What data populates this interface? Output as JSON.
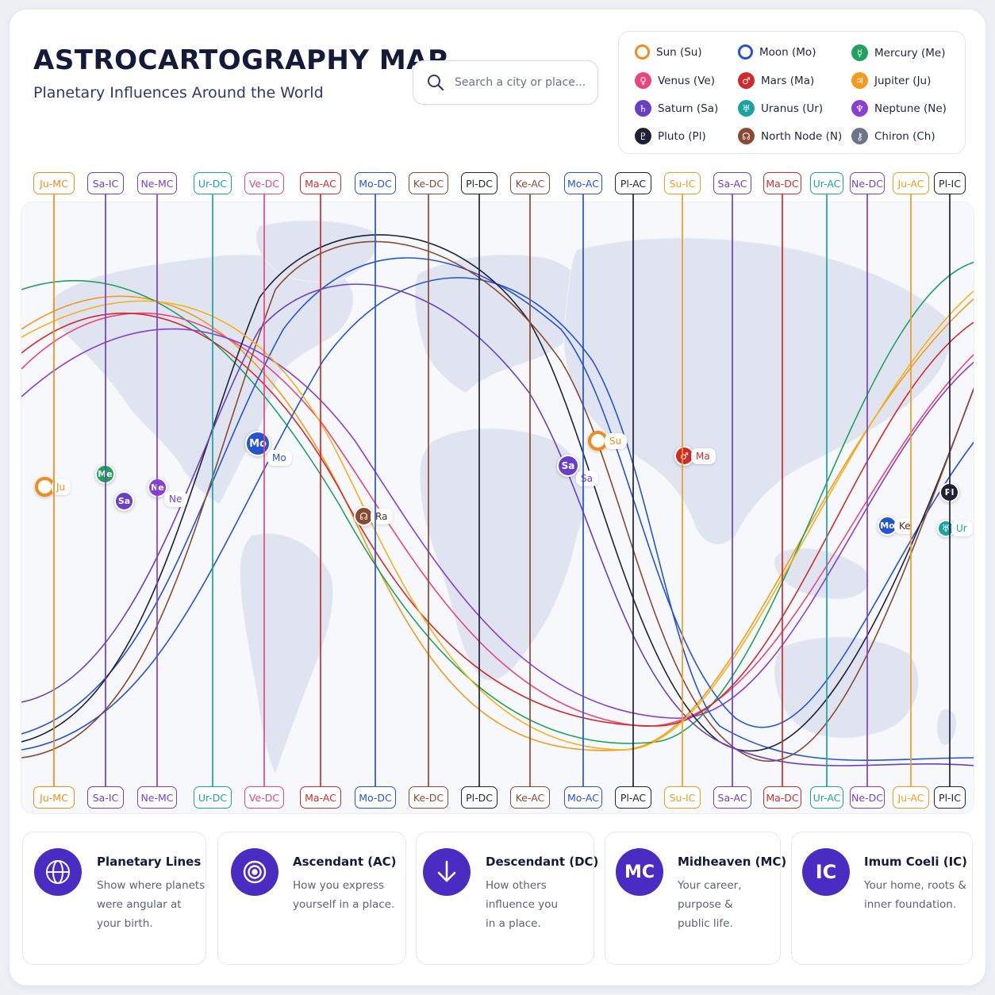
{
  "header": {
    "title": "ASTROCARTOGRAPHY MAP",
    "subtitle": "Planetary Influences Around the World"
  },
  "search": {
    "placeholder": "Search a city or place..."
  },
  "legend": [
    {
      "label": "Sun (Su)",
      "glyph": "",
      "color": "#f08c1a",
      "icon": "sun-icon"
    },
    {
      "label": "Moon (Mo)",
      "glyph": "",
      "color": "#2454d4",
      "icon": "moon-icon"
    },
    {
      "label": "Mercury (Me)",
      "glyph": "☿",
      "color": "#1fa35c",
      "icon": "mercury-icon"
    },
    {
      "label": "Venus (Ve)",
      "glyph": "♀",
      "color": "#e8457e",
      "icon": "venus-icon"
    },
    {
      "label": "Mars (Ma)",
      "glyph": "♂",
      "color": "#d12a2a",
      "icon": "mars-icon"
    },
    {
      "label": "Jupiter (Ju)",
      "glyph": "♃",
      "color": "#f29b1e",
      "icon": "jupiter-icon"
    },
    {
      "label": "Saturn (Sa)",
      "glyph": "♄",
      "color": "#6a3fc8",
      "icon": "saturn-icon"
    },
    {
      "label": "Uranus (Ur)",
      "glyph": "♅",
      "color": "#1aa3a3",
      "icon": "uranus-icon"
    },
    {
      "label": "Neptune (Ne)",
      "glyph": "♆",
      "color": "#8a3fd4",
      "icon": "neptune-icon"
    },
    {
      "label": "Pluto (Pl)",
      "glyph": "♇",
      "color": "#1f2235",
      "icon": "pluto-icon"
    },
    {
      "label": "North Node (N)",
      "glyph": "☊",
      "color": "#8a4a32",
      "icon": "north-node-icon"
    },
    {
      "label": "Chiron (Ch)",
      "glyph": "⚷",
      "color": "#6e7488",
      "icon": "chiron-icon"
    }
  ],
  "map_lines": [
    {
      "label": "Ju-MC",
      "color": "#f08c1a"
    },
    {
      "label": "Sa-IC",
      "color": "#6a3fc8"
    },
    {
      "label": "Ne-MC",
      "color": "#7a3fd0"
    },
    {
      "label": "Ur-DC",
      "color": "#1aa3a3"
    },
    {
      "label": "Ve-DC",
      "color": "#e8457e"
    },
    {
      "label": "Ma-AC",
      "color": "#d12a2a"
    },
    {
      "label": "Mo-DC",
      "color": "#2454d4"
    },
    {
      "label": "Ke-DC",
      "color": "#8a4a32"
    },
    {
      "label": "Pl-DC",
      "color": "#1f2235"
    },
    {
      "label": "Ke-AC",
      "color": "#8a4a32"
    },
    {
      "label": "Mo-AC",
      "color": "#2454d4"
    },
    {
      "label": "Pl-AC",
      "color": "#1f2235"
    },
    {
      "label": "Su-IC",
      "color": "#f29b1e"
    },
    {
      "label": "Sa-AC",
      "color": "#6a3fc8"
    },
    {
      "label": "Ma-DC",
      "color": "#d12a2a"
    },
    {
      "label": "Ur-AC",
      "color": "#1aa3a3"
    },
    {
      "label": "Ne-DC",
      "color": "#7a3fd0"
    },
    {
      "label": "Ju-AC",
      "color": "#f29b1e"
    },
    {
      "label": "Pl-IC",
      "color": "#1f2235"
    }
  ],
  "markers": [
    {
      "symbol": "",
      "label": "Ju",
      "color": "#f08c1a",
      "name": "marker-jupiter"
    },
    {
      "symbol": "Me",
      "label": "",
      "color": "#1fa35c",
      "name": "marker-mercury"
    },
    {
      "symbol": "Sa",
      "label": "",
      "color": "#6a3fc8",
      "name": "marker-saturn-west"
    },
    {
      "symbol": "Ne",
      "label": "Ne",
      "color": "#8a3fd4",
      "name": "marker-neptune"
    },
    {
      "symbol": "Mo",
      "label": "Mo",
      "color": "#2454d4",
      "name": "marker-moon-west"
    },
    {
      "symbol": "☊",
      "label": "Ra",
      "color": "#8a4a32",
      "name": "marker-rahu"
    },
    {
      "symbol": "Sa",
      "label": "Sa",
      "color": "#6a3fc8",
      "name": "marker-saturn-east"
    },
    {
      "symbol": "",
      "label": "Su",
      "color": "#f08c1a",
      "name": "marker-sun"
    },
    {
      "symbol": "♂",
      "label": "Ma",
      "color": "#d12a2a",
      "name": "marker-mars"
    },
    {
      "symbol": "Mo",
      "label": "Ke",
      "color": "#2454d4",
      "name": "marker-moon-east"
    },
    {
      "symbol": "Pl",
      "label": "",
      "color": "#1f2235",
      "name": "marker-pluto"
    },
    {
      "symbol": "♅",
      "label": "Ur",
      "color": "#1aa3a3",
      "name": "marker-uranus"
    }
  ],
  "info_cards": [
    {
      "title": "Planetary Lines",
      "desc": [
        "Show where planets",
        "were angular at",
        "your birth."
      ],
      "icon": "globe-icon"
    },
    {
      "title": "Ascendant (AC)",
      "desc": [
        "How you express",
        "yourself in a place."
      ],
      "icon": "target-icon"
    },
    {
      "title": "Descendant (DC)",
      "desc": [
        "How others",
        "influence you",
        "in a place."
      ],
      "icon": "arrow-down-icon"
    },
    {
      "title": "Midheaven (MC)",
      "desc": [
        "Your career,",
        "purpose &",
        "public life."
      ],
      "icon_text": "MC",
      "icon": "mc-icon"
    },
    {
      "title": "Imum Coeli (IC)",
      "desc": [
        "Your home, roots &",
        "inner foundation."
      ],
      "icon_text": "IC",
      "icon": "ic-icon"
    }
  ]
}
